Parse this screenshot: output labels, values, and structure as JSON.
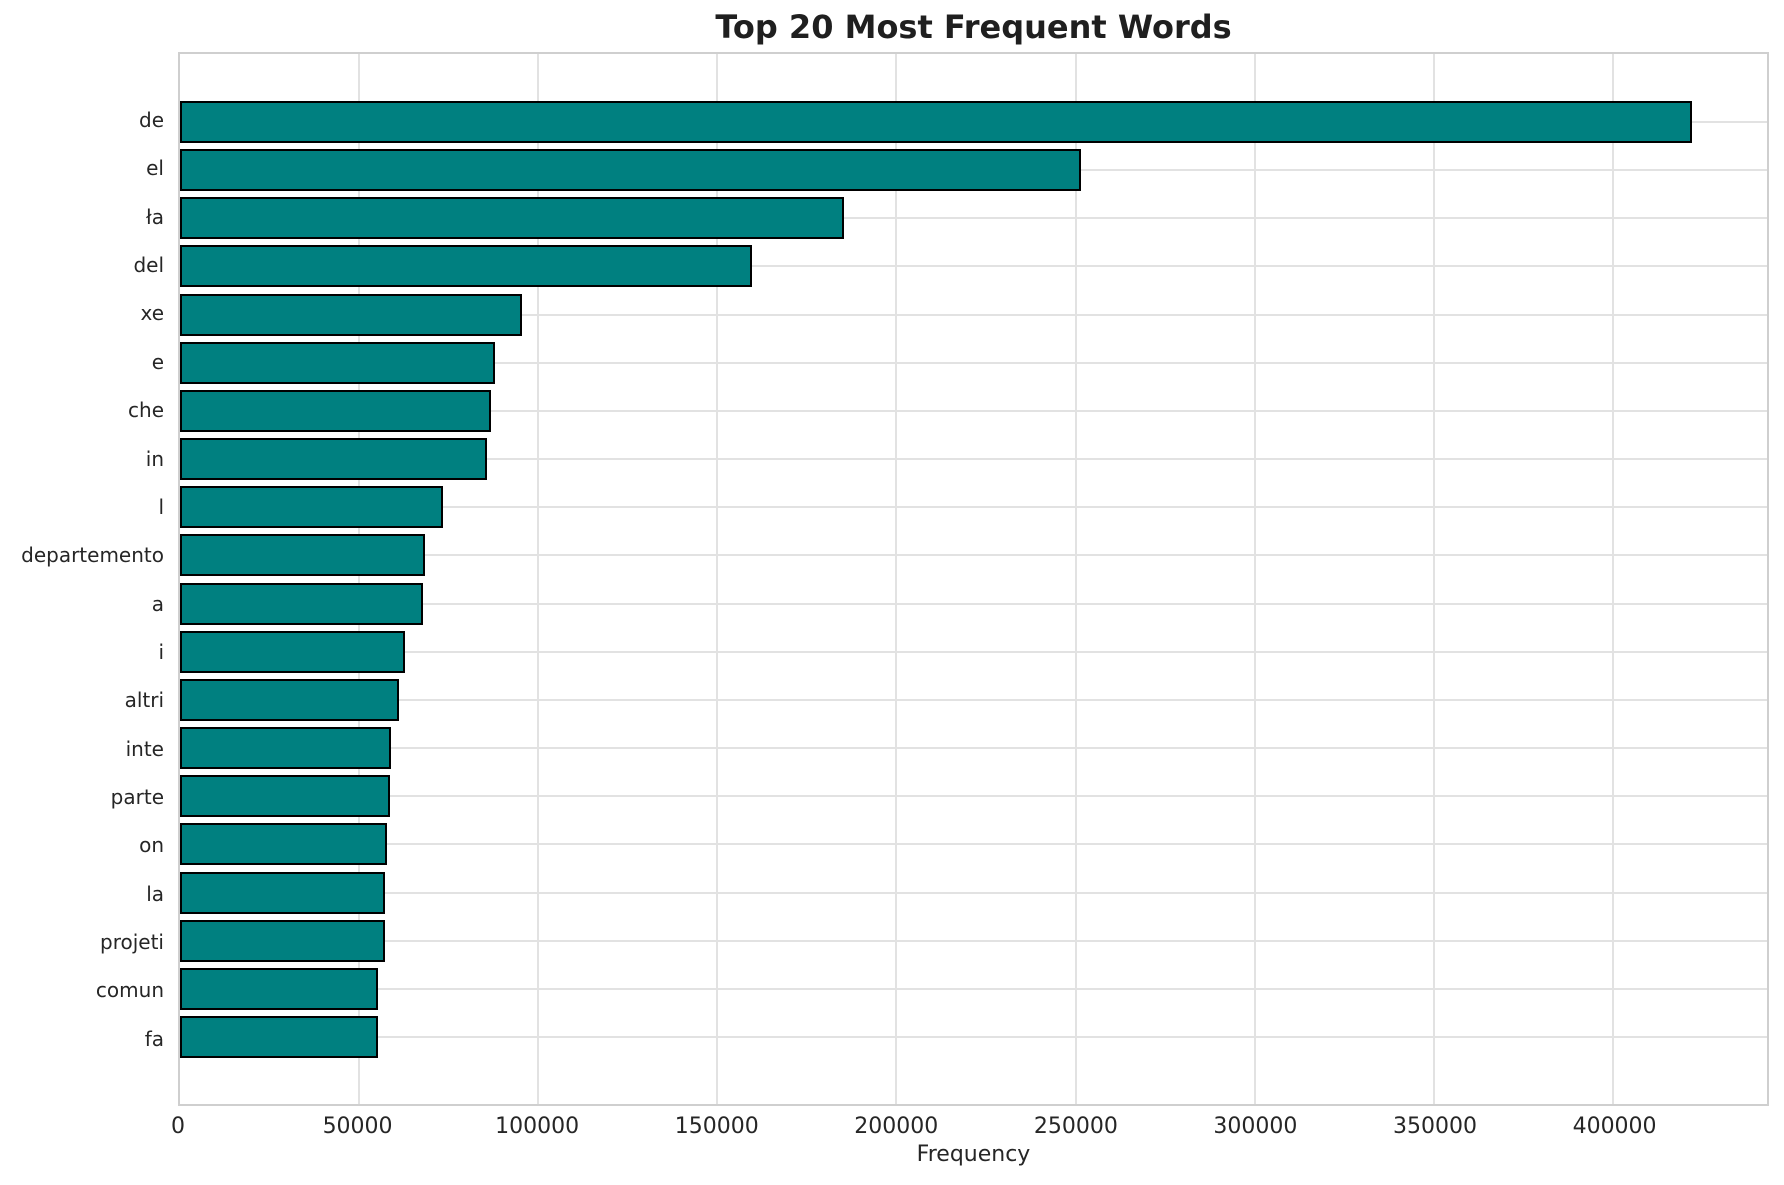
{
  "chart_data": {
    "type": "bar",
    "orientation": "horizontal",
    "title": "Top 20 Most Frequent Words",
    "xlabel": "Frequency",
    "ylabel": "",
    "categories": [
      "de",
      "el",
      "ła",
      "del",
      "xe",
      "e",
      "che",
      "in",
      "l",
      "departemento",
      "a",
      "i",
      "altri",
      "inte",
      "parte",
      "on",
      "la",
      "projeti",
      "comun",
      "fa"
    ],
    "values": [
      422000,
      251600,
      185300,
      159600,
      95600,
      87900,
      86800,
      85700,
      73500,
      68400,
      67900,
      62900,
      61000,
      59000,
      58500,
      57900,
      57200,
      57100,
      55400,
      55300
    ],
    "xticks": [
      0,
      50000,
      100000,
      150000,
      200000,
      250000,
      300000,
      350000,
      400000
    ],
    "xlim": [
      0,
      443000
    ],
    "grid": true,
    "legend": "none",
    "bar_color": "#008080",
    "bar_edge_color": "#000000"
  }
}
